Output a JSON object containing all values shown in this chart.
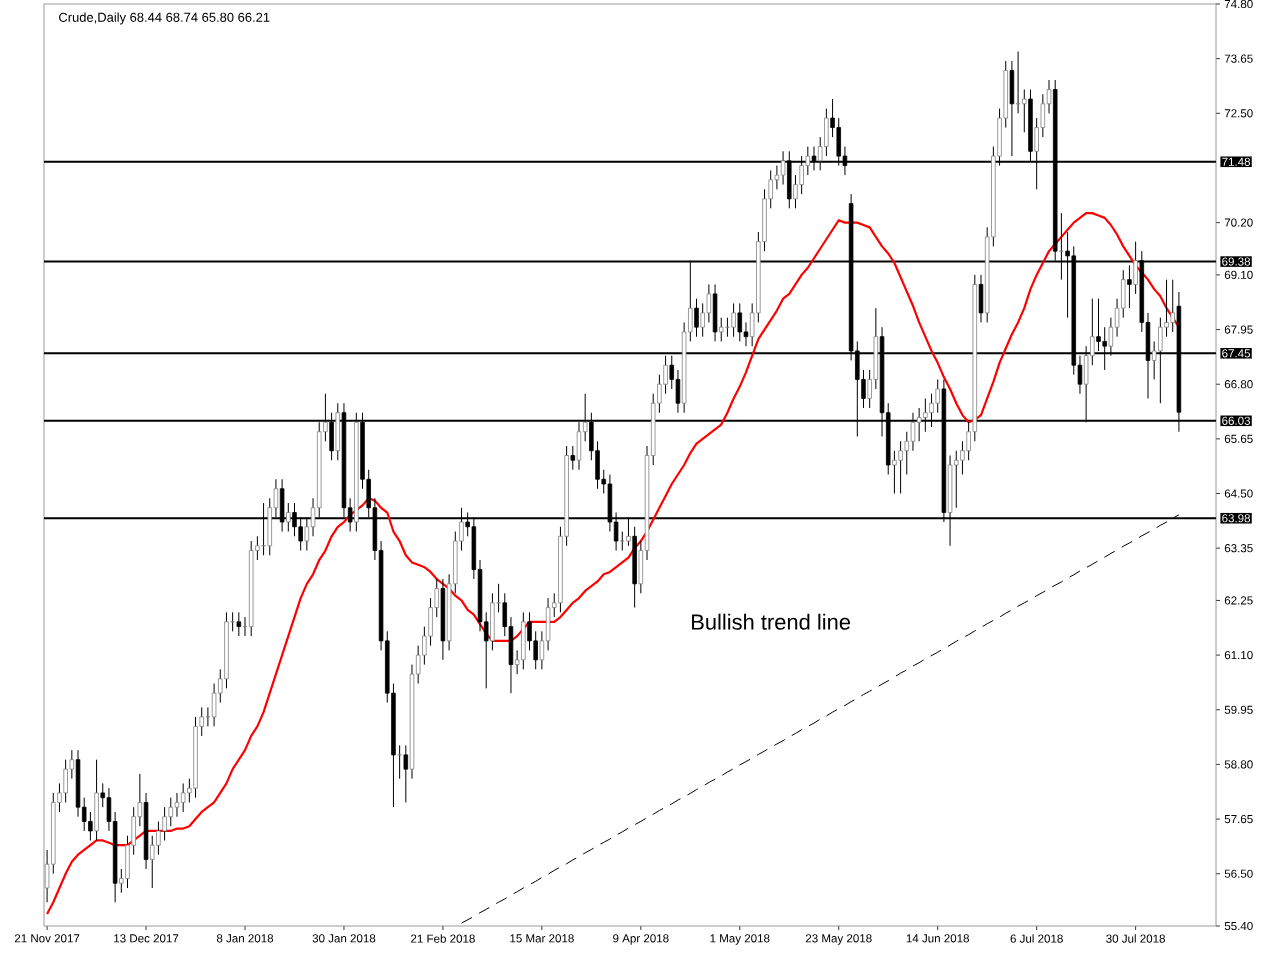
{
  "chart_data": {
    "type": "candlestick",
    "title": "Crude,Daily 68.44 68.74 65.80 66.21",
    "categories": [
      "21 Nov 2017",
      null,
      null,
      null,
      null,
      null,
      null,
      null,
      null,
      null,
      null,
      null,
      null,
      null,
      null,
      null,
      "13 Dec 2017",
      null,
      null,
      null,
      null,
      null,
      null,
      null,
      null,
      null,
      null,
      null,
      null,
      null,
      null,
      null,
      "8 Jan 2018",
      null,
      null,
      null,
      null,
      null,
      null,
      null,
      null,
      null,
      null,
      null,
      null,
      null,
      null,
      null,
      "30 Jan 2018",
      null,
      null,
      null,
      null,
      null,
      null,
      null,
      null,
      null,
      null,
      null,
      null,
      null,
      null,
      null,
      "21 Feb 2018",
      null,
      null,
      null,
      null,
      null,
      null,
      null,
      null,
      null,
      null,
      null,
      null,
      null,
      null,
      null,
      "15 Mar 2018",
      null,
      null,
      null,
      null,
      null,
      null,
      null,
      null,
      null,
      null,
      null,
      null,
      null,
      null,
      null,
      "9 Apr 2018",
      null,
      null,
      null,
      null,
      null,
      null,
      null,
      null,
      null,
      null,
      null,
      null,
      null,
      null,
      null,
      "1 May 2018",
      null,
      null,
      null,
      null,
      null,
      null,
      null,
      null,
      null,
      null,
      null,
      null,
      null,
      null,
      null,
      "23 May 2018",
      null,
      null,
      null,
      null,
      null,
      null,
      null,
      null,
      null,
      null,
      null,
      null,
      null,
      null,
      null,
      "14 Jun 2018",
      null,
      null,
      null,
      null,
      null,
      null,
      null,
      null,
      null,
      null,
      null,
      null,
      null,
      null,
      null,
      "6 Jul 2018",
      null,
      null,
      null,
      null,
      null,
      null,
      null,
      null,
      null,
      null,
      null,
      null,
      null,
      null,
      null,
      "30 Jul 2018",
      null,
      null,
      null,
      null,
      null,
      null,
      null
    ],
    "ohlc": [
      [
        56.2,
        57.0,
        55.9,
        56.7
      ],
      [
        56.7,
        58.2,
        56.5,
        58.0
      ],
      [
        58.0,
        58.4,
        57.8,
        58.2
      ],
      [
        58.2,
        58.9,
        58.0,
        58.7
      ],
      [
        58.7,
        59.1,
        58.5,
        58.9
      ],
      [
        58.9,
        59.1,
        57.7,
        57.9
      ],
      [
        57.9,
        58.1,
        57.4,
        57.6
      ],
      [
        57.6,
        57.8,
        57.2,
        57.4
      ],
      [
        57.4,
        58.9,
        57.2,
        58.2
      ],
      [
        58.2,
        58.4,
        57.9,
        58.1
      ],
      [
        58.1,
        58.3,
        57.4,
        57.6
      ],
      [
        57.6,
        57.8,
        55.9,
        56.3
      ],
      [
        56.3,
        56.6,
        56.1,
        56.4
      ],
      [
        56.4,
        57.3,
        56.2,
        57.1
      ],
      [
        57.1,
        57.9,
        56.9,
        57.7
      ],
      [
        57.7,
        58.6,
        57.5,
        58.0
      ],
      [
        58.0,
        58.2,
        56.6,
        56.8
      ],
      [
        56.8,
        57.3,
        56.2,
        57.1
      ],
      [
        57.1,
        57.6,
        56.9,
        57.4
      ],
      [
        57.4,
        57.9,
        57.2,
        57.7
      ],
      [
        57.7,
        58.1,
        57.5,
        57.9
      ],
      [
        57.9,
        58.2,
        57.7,
        58.0
      ],
      [
        58.0,
        58.4,
        57.8,
        58.2
      ],
      [
        58.2,
        58.5,
        58.0,
        58.3
      ],
      [
        58.3,
        59.8,
        58.1,
        59.6
      ],
      [
        59.6,
        60.0,
        59.4,
        59.8
      ],
      [
        59.8,
        60.0,
        59.6,
        59.8
      ],
      [
        59.8,
        60.5,
        59.6,
        60.3
      ],
      [
        60.3,
        60.8,
        60.1,
        60.6
      ],
      [
        60.6,
        62.0,
        60.4,
        61.8
      ],
      [
        61.8,
        62.0,
        61.6,
        61.8
      ],
      [
        61.8,
        62.0,
        61.5,
        61.7
      ],
      [
        61.7,
        61.9,
        61.5,
        61.7
      ],
      [
        61.7,
        63.5,
        61.5,
        63.3
      ],
      [
        63.3,
        63.6,
        63.1,
        63.4
      ],
      [
        63.4,
        64.3,
        63.2,
        63.4
      ],
      [
        63.4,
        64.4,
        63.2,
        64.2
      ],
      [
        64.2,
        64.8,
        64.0,
        64.6
      ],
      [
        64.6,
        64.8,
        63.7,
        63.9
      ],
      [
        63.9,
        64.3,
        63.7,
        64.1
      ],
      [
        64.1,
        64.3,
        63.6,
        63.8
      ],
      [
        63.8,
        64.0,
        63.3,
        63.5
      ],
      [
        63.5,
        64.0,
        63.3,
        63.8
      ],
      [
        63.8,
        64.4,
        63.6,
        64.2
      ],
      [
        64.2,
        66.0,
        64.0,
        65.8
      ],
      [
        65.8,
        66.6,
        65.6,
        66.0
      ],
      [
        66.0,
        66.2,
        65.2,
        65.4
      ],
      [
        65.4,
        66.4,
        65.2,
        66.2
      ],
      [
        66.2,
        66.4,
        64.0,
        64.2
      ],
      [
        64.2,
        64.4,
        63.7,
        63.9
      ],
      [
        63.9,
        66.2,
        63.7,
        66.0
      ],
      [
        66.0,
        66.2,
        64.6,
        64.8
      ],
      [
        64.8,
        65.0,
        64.0,
        64.2
      ],
      [
        64.2,
        64.4,
        63.1,
        63.3
      ],
      [
        63.3,
        63.5,
        61.2,
        61.4
      ],
      [
        61.4,
        61.6,
        60.1,
        60.3
      ],
      [
        60.3,
        60.5,
        57.9,
        59.0
      ],
      [
        59.0,
        59.2,
        58.5,
        59.0
      ],
      [
        59.0,
        59.2,
        58.0,
        58.7
      ],
      [
        58.7,
        60.9,
        58.5,
        60.7
      ],
      [
        60.7,
        61.3,
        60.5,
        61.1
      ],
      [
        61.1,
        61.7,
        60.9,
        61.5
      ],
      [
        61.5,
        62.3,
        61.3,
        62.1
      ],
      [
        62.1,
        62.7,
        61.9,
        62.5
      ],
      [
        62.5,
        62.7,
        61.0,
        61.4
      ],
      [
        61.4,
        62.8,
        61.2,
        62.6
      ],
      [
        62.6,
        63.7,
        62.4,
        63.5
      ],
      [
        63.5,
        64.2,
        63.3,
        63.9
      ],
      [
        63.9,
        64.1,
        63.6,
        63.8
      ],
      [
        63.8,
        64.0,
        62.7,
        62.9
      ],
      [
        62.9,
        63.1,
        61.6,
        61.8
      ],
      [
        61.8,
        62.0,
        60.4,
        61.4
      ],
      [
        61.4,
        62.4,
        61.2,
        62.2
      ],
      [
        62.2,
        62.6,
        62.0,
        62.2
      ],
      [
        62.2,
        62.4,
        61.5,
        61.7
      ],
      [
        61.7,
        61.9,
        60.3,
        60.9
      ],
      [
        60.9,
        61.2,
        60.7,
        61.0
      ],
      [
        61.0,
        62.0,
        60.8,
        61.8
      ],
      [
        61.8,
        62.0,
        61.2,
        61.4
      ],
      [
        61.4,
        61.6,
        60.8,
        61.0
      ],
      [
        61.0,
        61.6,
        60.8,
        61.4
      ],
      [
        61.4,
        62.3,
        61.2,
        62.1
      ],
      [
        62.1,
        62.4,
        61.9,
        62.2
      ],
      [
        62.2,
        63.8,
        62.0,
        63.6
      ],
      [
        63.6,
        65.5,
        63.4,
        65.3
      ],
      [
        65.3,
        65.5,
        65.0,
        65.2
      ],
      [
        65.2,
        66.0,
        65.0,
        65.8
      ],
      [
        65.8,
        66.6,
        65.6,
        66.0
      ],
      [
        66.0,
        66.2,
        65.2,
        65.4
      ],
      [
        65.4,
        65.6,
        64.6,
        64.8
      ],
      [
        64.8,
        65.0,
        64.5,
        64.7
      ],
      [
        64.7,
        64.9,
        63.7,
        63.9
      ],
      [
        63.9,
        64.1,
        63.3,
        63.5
      ],
      [
        63.5,
        63.7,
        63.3,
        63.5
      ],
      [
        63.5,
        64.0,
        63.4,
        63.6
      ],
      [
        63.6,
        63.8,
        62.1,
        62.6
      ],
      [
        62.6,
        63.5,
        62.4,
        63.3
      ],
      [
        63.3,
        65.5,
        63.1,
        65.3
      ],
      [
        65.3,
        66.6,
        65.1,
        66.4
      ],
      [
        66.4,
        67.0,
        66.2,
        66.8
      ],
      [
        66.8,
        67.4,
        66.6,
        67.2
      ],
      [
        67.2,
        67.4,
        66.7,
        66.9
      ],
      [
        66.9,
        67.1,
        66.2,
        66.4
      ],
      [
        66.4,
        68.1,
        66.2,
        67.9
      ],
      [
        67.9,
        69.4,
        67.7,
        68.4
      ],
      [
        68.4,
        68.6,
        67.8,
        68.0
      ],
      [
        68.0,
        68.5,
        67.8,
        68.3
      ],
      [
        68.3,
        68.9,
        68.1,
        68.7
      ],
      [
        68.7,
        68.9,
        67.7,
        67.9
      ],
      [
        67.9,
        68.2,
        67.7,
        68.0
      ],
      [
        68.0,
        68.2,
        67.8,
        68.0
      ],
      [
        68.0,
        68.5,
        67.8,
        68.3
      ],
      [
        68.3,
        68.5,
        67.7,
        67.9
      ],
      [
        67.9,
        68.1,
        67.6,
        67.8
      ],
      [
        67.8,
        68.5,
        67.6,
        68.3
      ],
      [
        68.3,
        70.0,
        68.1,
        69.8
      ],
      [
        69.8,
        70.9,
        69.6,
        70.7
      ],
      [
        70.7,
        71.3,
        70.5,
        71.1
      ],
      [
        71.1,
        71.4,
        70.9,
        71.2
      ],
      [
        71.2,
        71.7,
        71.0,
        71.5
      ],
      [
        71.5,
        71.7,
        70.5,
        70.7
      ],
      [
        70.7,
        71.2,
        70.5,
        71.0
      ],
      [
        71.0,
        71.6,
        70.8,
        71.4
      ],
      [
        71.4,
        71.8,
        71.2,
        71.6
      ],
      [
        71.6,
        71.8,
        71.3,
        71.5
      ],
      [
        71.5,
        72.0,
        71.3,
        71.8
      ],
      [
        71.8,
        72.6,
        71.6,
        72.4
      ],
      [
        72.4,
        72.8,
        72.0,
        72.2
      ],
      [
        72.2,
        72.4,
        71.4,
        71.6
      ],
      [
        71.6,
        71.8,
        71.2,
        71.4
      ],
      [
        70.6,
        70.8,
        67.3,
        67.5
      ],
      [
        67.5,
        67.7,
        65.7,
        66.9
      ],
      [
        66.9,
        67.1,
        66.3,
        66.5
      ],
      [
        66.5,
        67.1,
        66.3,
        66.9
      ],
      [
        66.9,
        68.4,
        66.7,
        67.8
      ],
      [
        67.8,
        68.0,
        65.7,
        66.2
      ],
      [
        66.2,
        66.4,
        64.9,
        65.1
      ],
      [
        65.1,
        65.4,
        64.5,
        65.2
      ],
      [
        65.2,
        65.6,
        64.5,
        65.4
      ],
      [
        65.4,
        65.8,
        64.9,
        65.6
      ],
      [
        65.6,
        66.2,
        65.4,
        66.0
      ],
      [
        66.0,
        66.3,
        65.6,
        66.1
      ],
      [
        66.1,
        66.5,
        65.8,
        66.2
      ],
      [
        66.2,
        66.6,
        65.9,
        66.4
      ],
      [
        66.4,
        66.9,
        66.2,
        66.7
      ],
      [
        66.7,
        66.9,
        63.9,
        64.1
      ],
      [
        64.1,
        65.3,
        63.4,
        65.1
      ],
      [
        65.1,
        65.4,
        64.2,
        65.2
      ],
      [
        65.2,
        65.6,
        64.9,
        65.4
      ],
      [
        65.4,
        66.0,
        65.2,
        65.8
      ],
      [
        65.8,
        69.1,
        65.6,
        68.9
      ],
      [
        68.9,
        69.1,
        68.1,
        68.3
      ],
      [
        68.3,
        70.1,
        68.1,
        69.9
      ],
      [
        69.9,
        71.8,
        69.7,
        71.6
      ],
      [
        71.6,
        72.6,
        71.4,
        72.4
      ],
      [
        72.4,
        73.6,
        72.2,
        73.4
      ],
      [
        73.4,
        73.6,
        71.6,
        72.7
      ],
      [
        72.7,
        73.8,
        72.5,
        72.7
      ],
      [
        72.7,
        73.0,
        72.1,
        72.8
      ],
      [
        72.8,
        73.0,
        71.5,
        71.7
      ],
      [
        71.7,
        72.4,
        70.9,
        72.2
      ],
      [
        72.2,
        72.9,
        72.0,
        72.7
      ],
      [
        72.7,
        73.2,
        72.5,
        73.0
      ],
      [
        73.0,
        73.2,
        69.4,
        69.6
      ],
      [
        69.6,
        70.4,
        69.0,
        69.6
      ],
      [
        69.6,
        70.0,
        68.2,
        69.5
      ],
      [
        69.5,
        69.7,
        67.0,
        67.2
      ],
      [
        67.2,
        67.4,
        66.6,
        66.8
      ],
      [
        66.8,
        67.6,
        66.0,
        67.4
      ],
      [
        67.4,
        68.6,
        67.2,
        67.8
      ],
      [
        67.8,
        68.6,
        67.5,
        67.7
      ],
      [
        67.7,
        68.0,
        67.1,
        67.6
      ],
      [
        67.6,
        68.2,
        67.4,
        68.0
      ],
      [
        68.0,
        68.6,
        67.8,
        68.4
      ],
      [
        68.4,
        69.2,
        68.2,
        69.0
      ],
      [
        69.0,
        69.3,
        68.4,
        68.9
      ],
      [
        68.9,
        69.8,
        68.7,
        69.4
      ],
      [
        69.4,
        69.6,
        67.9,
        68.1
      ],
      [
        68.1,
        68.3,
        66.5,
        67.3
      ],
      [
        67.3,
        67.7,
        66.9,
        67.5
      ],
      [
        67.5,
        68.2,
        66.4,
        68.0
      ],
      [
        68.0,
        69.0,
        67.8,
        68.1
      ],
      [
        68.1,
        69.0,
        67.9,
        68.3
      ],
      [
        68.44,
        68.74,
        65.8,
        66.21
      ]
    ],
    "series": [
      {
        "type": "line",
        "color": "#ff0000",
        "values": [
          55.65,
          55.9,
          56.2,
          56.5,
          56.75,
          56.9,
          57.0,
          57.1,
          57.2,
          57.2,
          57.15,
          57.1,
          57.1,
          57.1,
          57.2,
          57.3,
          57.4,
          57.4,
          57.4,
          57.4,
          57.4,
          57.45,
          57.45,
          57.5,
          57.65,
          57.8,
          57.9,
          58.0,
          58.2,
          58.4,
          58.7,
          58.9,
          59.1,
          59.4,
          59.6,
          59.9,
          60.3,
          60.7,
          61.1,
          61.5,
          61.9,
          62.3,
          62.6,
          62.8,
          63.1,
          63.3,
          63.6,
          63.8,
          63.9,
          64.05,
          64.15,
          64.25,
          64.4,
          64.35,
          64.2,
          64.1,
          63.7,
          63.5,
          63.2,
          63.05,
          63.0,
          62.95,
          62.85,
          62.7,
          62.6,
          62.5,
          62.35,
          62.25,
          62.05,
          61.95,
          61.75,
          61.55,
          61.4,
          61.4,
          61.4,
          61.4,
          61.5,
          61.65,
          61.8,
          61.8,
          61.8,
          61.8,
          61.8,
          61.9,
          62.05,
          62.2,
          62.3,
          62.45,
          62.55,
          62.65,
          62.8,
          62.85,
          62.95,
          63.05,
          63.15,
          63.35,
          63.5,
          63.7,
          63.95,
          64.2,
          64.45,
          64.7,
          64.9,
          65.1,
          65.35,
          65.55,
          65.65,
          65.75,
          65.85,
          65.95,
          66.2,
          66.5,
          66.75,
          67.05,
          67.4,
          67.75,
          67.95,
          68.15,
          68.35,
          68.6,
          68.7,
          68.9,
          69.1,
          69.25,
          69.45,
          69.65,
          69.85,
          70.05,
          70.25,
          70.2,
          70.2,
          70.2,
          70.15,
          70.1,
          69.9,
          69.7,
          69.55,
          69.35,
          69.05,
          68.75,
          68.45,
          68.1,
          67.8,
          67.5,
          67.25,
          66.95,
          66.7,
          66.4,
          66.15,
          66.0,
          66.05,
          66.15,
          66.5,
          66.85,
          67.25,
          67.55,
          67.85,
          68.1,
          68.4,
          68.8,
          69.1,
          69.35,
          69.6,
          69.75,
          69.9,
          70.05,
          70.2,
          70.3,
          70.4,
          70.4,
          70.35,
          70.3,
          70.15,
          69.95,
          69.7,
          69.5,
          69.3,
          69.15,
          69.0,
          68.8,
          68.65,
          68.4,
          68.2,
          68.0
        ]
      },
      {
        "type": "line",
        "color": "#000000",
        "line_style": "dashed",
        "values": [
          null,
          null,
          null,
          null,
          null,
          null,
          null,
          null,
          null,
          null,
          null,
          null,
          null,
          null,
          null,
          null,
          null,
          null,
          null,
          null,
          null,
          null,
          null,
          null,
          null,
          null,
          null,
          null,
          null,
          null,
          null,
          null,
          null,
          null,
          null,
          null,
          null,
          null,
          null,
          null,
          null,
          null,
          null,
          null,
          null,
          null,
          null,
          null,
          null,
          null,
          null,
          null,
          null,
          null,
          null,
          null,
          null,
          null,
          null,
          null,
          null,
          null,
          null,
          null,
          null,
          null,
          null,
          55.46,
          55.53,
          55.6,
          55.68,
          55.75,
          55.83,
          55.9,
          55.97,
          56.05,
          56.12,
          56.2,
          56.27,
          56.34,
          56.42,
          56.49,
          56.57,
          56.64,
          56.71,
          56.79,
          56.86,
          56.94,
          57.01,
          57.09,
          57.16,
          57.23,
          57.31,
          57.38,
          57.46,
          57.53,
          57.6,
          57.68,
          57.75,
          57.83,
          57.9,
          57.97,
          58.05,
          58.12,
          58.19,
          58.27,
          58.34,
          58.42,
          58.49,
          58.56,
          58.64,
          58.71,
          58.79,
          58.86,
          58.93,
          59.01,
          59.08,
          59.16,
          59.23,
          59.3,
          59.38,
          59.45,
          59.53,
          59.6,
          59.67,
          59.75,
          59.82,
          59.9,
          59.97,
          60.04,
          60.12,
          60.19,
          60.27,
          60.34,
          60.41,
          60.49,
          60.56,
          60.64,
          60.72,
          60.79,
          60.87,
          60.94,
          61.02,
          61.09,
          61.16,
          61.24,
          61.31,
          61.39,
          61.46,
          61.53,
          61.61,
          61.68,
          61.76,
          61.83,
          61.9,
          61.98,
          62.05,
          62.13,
          62.2,
          62.27,
          62.35,
          62.42,
          62.5,
          62.57,
          62.64,
          62.72,
          62.79,
          62.87,
          62.94,
          63.01,
          63.09,
          63.16,
          63.24,
          63.31,
          63.39,
          63.46,
          63.53,
          63.61,
          63.68,
          63.75,
          63.83,
          63.9,
          63.98,
          64.05
        ]
      }
    ],
    "ref_lines": [
      {
        "axis": "y",
        "value": 71.48,
        "label": "71.48",
        "color": "#000000"
      },
      {
        "axis": "y",
        "value": 69.38,
        "label": "69.38",
        "color": "#000000"
      },
      {
        "axis": "y",
        "value": 67.45,
        "label": "67.45",
        "color": "#000000"
      },
      {
        "axis": "y",
        "value": 66.03,
        "label": "66.03",
        "color": "#000000"
      },
      {
        "axis": "y",
        "value": 63.98,
        "label": "63.98",
        "color": "#000000"
      }
    ],
    "annotations": [
      "Bullish trend line"
    ],
    "ylim": [
      55.4,
      74.8
    ],
    "yticks": [
      {
        "value": 74.8,
        "label": "74.80"
      },
      {
        "value": 73.65,
        "label": "73.65"
      },
      {
        "value": 72.5,
        "label": "72.50"
      },
      {
        "value": 70.2,
        "label": "70.20"
      },
      {
        "value": 69.1,
        "label": "69.10"
      },
      {
        "value": 67.95,
        "label": "67.95"
      },
      {
        "value": 66.8,
        "label": "66.80"
      },
      {
        "value": 65.65,
        "label": "65.65"
      },
      {
        "value": 64.5,
        "label": "64.50"
      },
      {
        "value": 63.35,
        "label": "63.35"
      },
      {
        "value": 62.25,
        "label": "62.25"
      },
      {
        "value": 61.1,
        "label": "61.10"
      },
      {
        "value": 59.95,
        "label": "59.95"
      },
      {
        "value": 58.8,
        "label": "58.80"
      },
      {
        "value": 57.65,
        "label": "57.65"
      },
      {
        "value": 56.5,
        "label": "56.50"
      },
      {
        "value": 55.4,
        "label": "55.40"
      }
    ]
  }
}
